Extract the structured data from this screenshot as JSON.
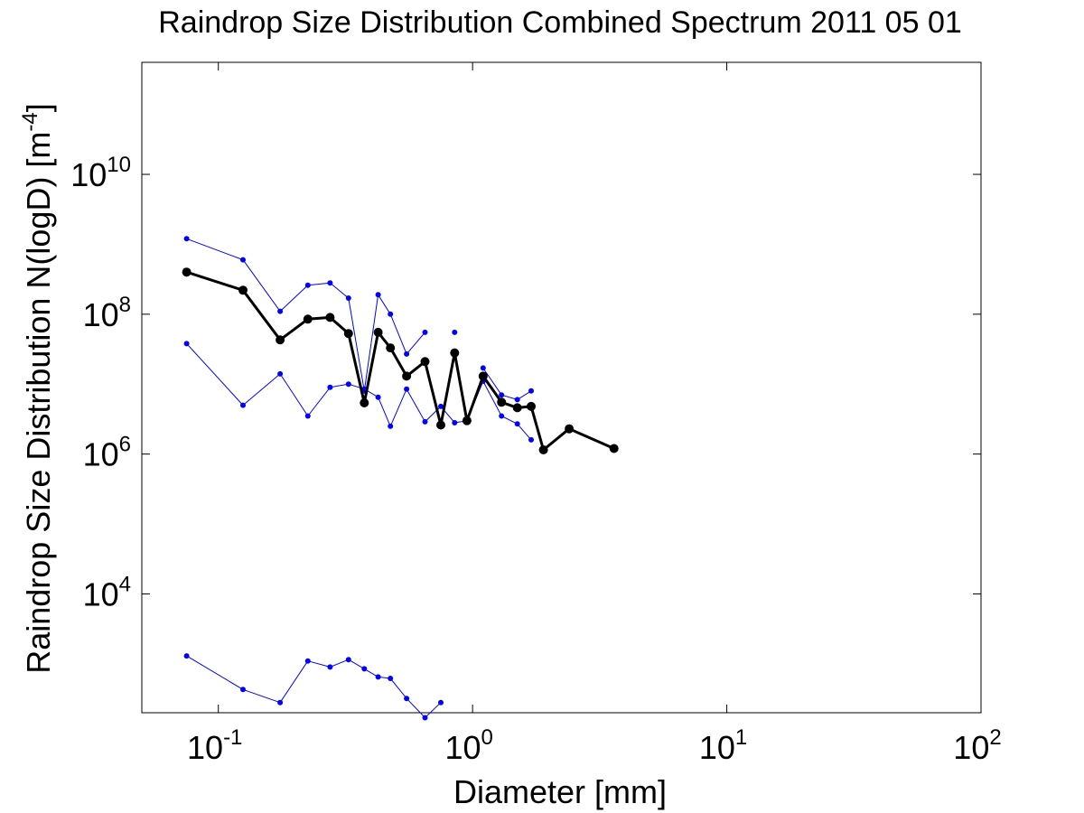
{
  "chart_data": {
    "type": "line",
    "title": "Raindrop Size Distribution Combined Spectrum 2011 05 01",
    "xlabel": "Diameter [mm]",
    "ylabel_main": "Raindrop Size Distribution N(logD) [m",
    "ylabel_exp": "-4",
    "ylabel_close": "]",
    "x_scale": "log",
    "y_scale": "log",
    "xlim": [
      0.05,
      100
    ],
    "ylim": [
      200,
      400000000000.0
    ],
    "grid": false,
    "x_ticks": [
      {
        "value": 0.1,
        "base": "10",
        "exp": "-1"
      },
      {
        "value": 1,
        "base": "10",
        "exp": "0"
      },
      {
        "value": 10,
        "base": "10",
        "exp": "1"
      },
      {
        "value": 100,
        "base": "10",
        "exp": "2"
      }
    ],
    "y_ticks": [
      {
        "value": 10000,
        "base": "10",
        "exp": "4"
      },
      {
        "value": 1000000,
        "base": "10",
        "exp": "6"
      },
      {
        "value": 100000000,
        "base": "10",
        "exp": "8"
      },
      {
        "value": 10000000000,
        "base": "10",
        "exp": "10"
      }
    ],
    "series": [
      {
        "color": "#0000ff",
        "line_width": 1,
        "marker_radius": 3,
        "points": [
          [
            0.075,
            1200000000.0
          ],
          [
            0.125,
            600000000.0
          ],
          [
            0.175,
            110000000.0
          ],
          [
            0.225,
            260000000.0
          ],
          [
            0.275,
            280000000.0
          ],
          [
            0.325,
            170000000.0
          ],
          [
            0.375,
            8000000.0
          ],
          [
            0.425,
            190000000.0
          ],
          [
            0.475,
            100000000.0
          ],
          [
            0.55,
            27000000.0
          ],
          [
            0.65,
            55000000.0
          ],
          [
            0.75,
            null
          ],
          [
            0.85,
            55000000.0
          ],
          [
            0.95,
            null
          ],
          [
            1.1,
            17000000.0
          ],
          [
            1.3,
            7000000.0
          ],
          [
            1.5,
            6000000.0
          ],
          [
            1.7,
            8000000.0
          ],
          [
            1.9,
            null
          ],
          [
            2.4,
            null
          ],
          [
            3.6,
            null
          ]
        ]
      },
      {
        "color": "#0000ff",
        "line_width": 1,
        "marker_radius": 3,
        "points": [
          [
            0.075,
            38000000.0
          ],
          [
            0.125,
            5000000.0
          ],
          [
            0.175,
            14000000.0
          ],
          [
            0.225,
            3500000.0
          ],
          [
            0.275,
            9000000.0
          ],
          [
            0.325,
            10000000.0
          ],
          [
            0.375,
            8500000.0
          ],
          [
            0.425,
            6500000.0
          ],
          [
            0.475,
            2500000.0
          ],
          [
            0.55,
            8500000.0
          ],
          [
            0.65,
            2900000.0
          ],
          [
            0.75,
            4800000.0
          ],
          [
            0.85,
            2800000.0
          ],
          [
            0.95,
            3000000.0
          ],
          [
            1.1,
            11000000.0
          ],
          [
            1.3,
            3500000.0
          ],
          [
            1.5,
            2700000.0
          ],
          [
            1.7,
            1600000.0
          ],
          [
            1.9,
            null
          ],
          [
            2.4,
            null
          ],
          [
            3.6,
            null
          ]
        ]
      },
      {
        "color": "#0000ff",
        "line_width": 1,
        "marker_radius": 3,
        "points": [
          [
            0.075,
            1300.0
          ],
          [
            0.125,
            430.0
          ],
          [
            0.175,
            280.0
          ],
          [
            0.225,
            1100.0
          ],
          [
            0.275,
            900.0
          ],
          [
            0.325,
            1150.0
          ],
          [
            0.375,
            850.0
          ],
          [
            0.425,
            650.0
          ],
          [
            0.475,
            620.0
          ],
          [
            0.55,
            320.0
          ],
          [
            0.65,
            170.0
          ],
          [
            0.75,
            280.0
          ],
          [
            0.85,
            null
          ],
          [
            0.95,
            null
          ],
          [
            1.1,
            null
          ],
          [
            1.3,
            null
          ],
          [
            1.5,
            null
          ],
          [
            1.7,
            null
          ],
          [
            1.9,
            null
          ],
          [
            2.4,
            null
          ],
          [
            3.6,
            null
          ]
        ]
      },
      {
        "color": "#000000",
        "line_width": 3,
        "marker_radius": 5,
        "points": [
          [
            0.075,
            400000000.0
          ],
          [
            0.125,
            220000000.0
          ],
          [
            0.175,
            43000000.0
          ],
          [
            0.225,
            85000000.0
          ],
          [
            0.275,
            90000000.0
          ],
          [
            0.325,
            53000000.0
          ],
          [
            0.375,
            5400000.0
          ],
          [
            0.425,
            55000000.0
          ],
          [
            0.475,
            33000000.0
          ],
          [
            0.55,
            13000000.0
          ],
          [
            0.65,
            21000000.0
          ],
          [
            0.75,
            2600000.0
          ],
          [
            0.85,
            28000000.0
          ],
          [
            0.95,
            3000000.0
          ],
          [
            1.1,
            13000000.0
          ],
          [
            1.3,
            5500000.0
          ],
          [
            1.5,
            4600000.0
          ],
          [
            1.7,
            4800000.0
          ],
          [
            1.9,
            1150000.0
          ],
          [
            2.4,
            2300000.0
          ],
          [
            3.6,
            1200000.0
          ]
        ]
      }
    ]
  }
}
